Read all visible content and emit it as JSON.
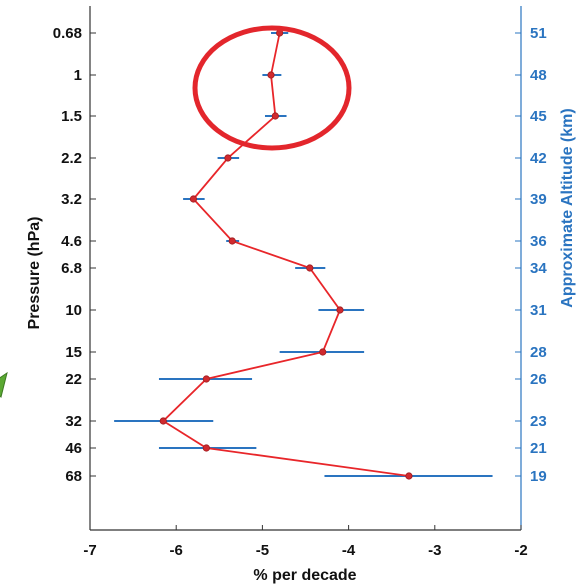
{
  "chart_data": {
    "type": "line",
    "title": "",
    "xlabel": "% per decade",
    "ylabel_left": "Pressure (hPa)",
    "ylabel_right": "Approximate Altitude (km)",
    "xlim": [
      -7,
      -2
    ],
    "x_ticks": [
      "-7",
      "-6",
      "-5",
      "-4",
      "-3",
      "-2"
    ],
    "pressure_levels": [
      "0.68",
      "1",
      "1.5",
      "2.2",
      "3.2",
      "4.6",
      "6.8",
      "10",
      "15",
      "22",
      "32",
      "46",
      "68"
    ],
    "altitude_km": [
      "51",
      "48",
      "45",
      "42",
      "39",
      "36",
      "34",
      "31",
      "28",
      "26",
      "23",
      "21",
      "19"
    ],
    "series": [
      {
        "x": [
          -4.8,
          -4.9,
          -4.85,
          -5.4,
          -5.8,
          -5.35,
          -4.45,
          -4.1,
          -4.3,
          -5.65,
          -6.15,
          -5.65,
          -3.3
        ],
        "err_low": [
          -4.9,
          -5.0,
          -4.97,
          -5.52,
          -5.92,
          -5.42,
          -4.62,
          -4.35,
          -4.8,
          -6.2,
          -6.72,
          -6.2,
          -4.28
        ],
        "err_high": [
          -4.7,
          -4.78,
          -4.72,
          -5.27,
          -5.67,
          -5.27,
          -4.27,
          -3.82,
          -3.82,
          -5.12,
          -5.57,
          -5.07,
          -2.33
        ]
      }
    ],
    "annotations": [
      "red circle around 0.68–1.5 hPa",
      "green arrow pointing right"
    ],
    "colors": {
      "line": "#e8262a",
      "marker": "#d02a2f",
      "errorbar": "#2a74c0",
      "right_axis": "#2a74c0",
      "circle": "#e3262c",
      "arrow": "#5aa832"
    }
  }
}
